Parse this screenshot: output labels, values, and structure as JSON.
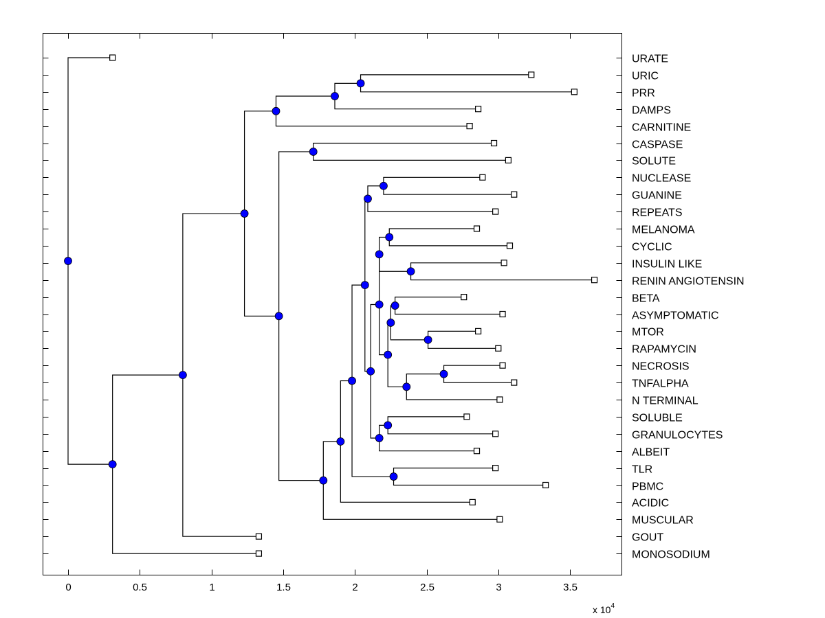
{
  "chart_data": {
    "type": "dendrogram",
    "title": "",
    "xlabel": "",
    "ylabel": "",
    "x_multiplier_label": "x 10",
    "x_multiplier_exponent": "4",
    "xlim": [
      -0.18,
      3.85
    ],
    "x_ticks": [
      0,
      0.5,
      1,
      1.5,
      2,
      2.5,
      3,
      3.5
    ],
    "x_tick_labels": [
      "0",
      "0.5",
      "1",
      "1.5",
      "2",
      "2.5",
      "3",
      "3.5"
    ],
    "grid": false,
    "colors": {
      "internal_node": "#0000ff",
      "leaf_marker_fill": "#ffffff",
      "line": "#000000"
    },
    "leaves": [
      {
        "label": "URATE",
        "x": 0.31
      },
      {
        "label": "URIC",
        "x": 3.23
      },
      {
        "label": "PRR",
        "x": 3.53
      },
      {
        "label": "DAMPS",
        "x": 2.86
      },
      {
        "label": "CARNITINE",
        "x": 2.8
      },
      {
        "label": "CASPASE",
        "x": 2.97
      },
      {
        "label": "SOLUTE",
        "x": 3.07
      },
      {
        "label": "NUCLEASE",
        "x": 2.89
      },
      {
        "label": "GUANINE",
        "x": 3.11
      },
      {
        "label": "REPEATS",
        "x": 2.98
      },
      {
        "label": "MELANOMA",
        "x": 2.85
      },
      {
        "label": "CYCLIC",
        "x": 3.08
      },
      {
        "label": "INSULIN LIKE",
        "x": 3.04
      },
      {
        "label": "RENIN ANGIOTENSIN",
        "x": 3.67
      },
      {
        "label": "BETA",
        "x": 2.76
      },
      {
        "label": "ASYMPTOMATIC",
        "x": 3.03
      },
      {
        "label": "MTOR",
        "x": 2.86
      },
      {
        "label": "RAPAMYCIN",
        "x": 3.0
      },
      {
        "label": "NECROSIS",
        "x": 3.03
      },
      {
        "label": "TNFALPHA",
        "x": 3.11
      },
      {
        "label": "N TERMINAL",
        "x": 3.01
      },
      {
        "label": "SOLUBLE",
        "x": 2.78
      },
      {
        "label": "GRANULOCYTES",
        "x": 2.98
      },
      {
        "label": "ALBEIT",
        "x": 2.85
      },
      {
        "label": "TLR",
        "x": 2.98
      },
      {
        "label": "PBMC",
        "x": 3.33
      },
      {
        "label": "ACIDIC",
        "x": 2.82
      },
      {
        "label": "MUSCULAR",
        "x": 3.01
      },
      {
        "label": "GOUT",
        "x": 1.33
      },
      {
        "label": "MONOSODIUM",
        "x": 1.33
      }
    ],
    "nodes": [
      {
        "id": "root",
        "x": 0.0,
        "children": [
          "L:0",
          "A"
        ]
      },
      {
        "id": "A",
        "x": 0.31,
        "children": [
          "B",
          "L:29"
        ]
      },
      {
        "id": "B",
        "x": 0.8,
        "children": [
          "C",
          "L:28"
        ]
      },
      {
        "id": "C",
        "x": 1.23,
        "children": [
          "D",
          "E"
        ]
      },
      {
        "id": "D",
        "x": 1.45,
        "children": [
          "F",
          "L:4"
        ]
      },
      {
        "id": "F",
        "x": 1.86,
        "children": [
          "G",
          "L:3"
        ]
      },
      {
        "id": "G",
        "x": 2.04,
        "children": [
          "L:1",
          "L:2"
        ]
      },
      {
        "id": "E",
        "x": 1.47,
        "children": [
          "H",
          "I"
        ]
      },
      {
        "id": "H",
        "x": 1.71,
        "children": [
          "L:5",
          "L:6"
        ]
      },
      {
        "id": "I",
        "x": 1.78,
        "children": [
          "J",
          "L:27"
        ]
      },
      {
        "id": "J",
        "x": 1.9,
        "children": [
          "K",
          "L:26"
        ]
      },
      {
        "id": "K",
        "x": 1.98,
        "children": [
          "Lnode",
          "M"
        ]
      },
      {
        "id": "M",
        "x": 2.27,
        "children": [
          "L:24",
          "L:25"
        ]
      },
      {
        "id": "Lnode",
        "x": 2.07,
        "children": [
          "N",
          "O"
        ]
      },
      {
        "id": "N",
        "x": 2.09,
        "children": [
          "P",
          "L:9"
        ]
      },
      {
        "id": "P",
        "x": 2.2,
        "children": [
          "L:7",
          "L:8"
        ]
      },
      {
        "id": "O",
        "x": 2.11,
        "children": [
          "Q",
          "R"
        ]
      },
      {
        "id": "Q",
        "x": 2.17,
        "children": [
          "S",
          "T"
        ]
      },
      {
        "id": "S",
        "x": 2.17,
        "children": [
          "U",
          "V"
        ]
      },
      {
        "id": "U",
        "x": 2.24,
        "children": [
          "L:10",
          "L:11"
        ]
      },
      {
        "id": "V",
        "x": 2.39,
        "children": [
          "L:12",
          "L:13"
        ]
      },
      {
        "id": "T",
        "x": 2.23,
        "children": [
          "W",
          "X"
        ]
      },
      {
        "id": "W",
        "x": 2.25,
        "children": [
          "Y",
          "Z"
        ]
      },
      {
        "id": "Y",
        "x": 2.28,
        "children": [
          "L:14",
          "L:15"
        ]
      },
      {
        "id": "Z",
        "x": 2.51,
        "children": [
          "L:16",
          "L:17"
        ]
      },
      {
        "id": "X",
        "x": 2.36,
        "children": [
          "AA",
          "L:20"
        ]
      },
      {
        "id": "AA",
        "x": 2.62,
        "children": [
          "L:18",
          "L:19"
        ]
      },
      {
        "id": "R",
        "x": 2.17,
        "children": [
          "AB",
          "L:23"
        ]
      },
      {
        "id": "AB",
        "x": 2.23,
        "children": [
          "L:21",
          "L:22"
        ]
      }
    ]
  }
}
